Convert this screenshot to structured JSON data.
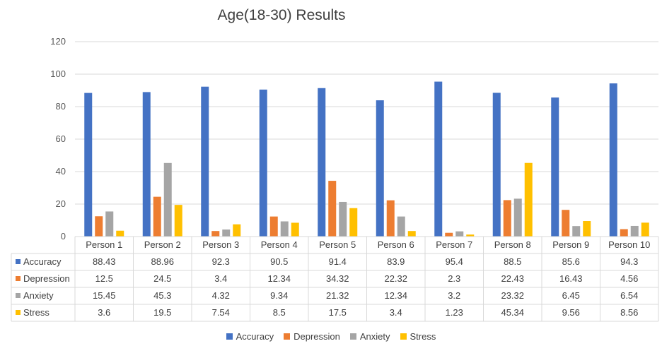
{
  "chart_data": {
    "type": "bar",
    "title": "Age(18-30) Results",
    "categories": [
      "Person 1",
      "Person 2",
      "Person 3",
      "Person 4",
      "Person 5",
      "Person 6",
      "Person 7",
      "Person 8",
      "Person 9",
      "Person 10"
    ],
    "ylim": [
      0,
      120
    ],
    "yticks": [
      0,
      20,
      40,
      60,
      80,
      100,
      120
    ],
    "grid": true,
    "legend_position": "bottom",
    "series": [
      {
        "name": "Accuracy",
        "color": "#4472C4",
        "values": [
          88.43,
          88.96,
          92.3,
          90.5,
          91.4,
          83.9,
          95.4,
          88.5,
          85.6,
          94.3
        ]
      },
      {
        "name": "Depression",
        "color": "#ED7D31",
        "values": [
          12.5,
          24.5,
          3.4,
          12.34,
          34.32,
          22.32,
          2.3,
          22.43,
          16.43,
          4.56
        ]
      },
      {
        "name": "Anxiety",
        "color": "#A5A5A5",
        "values": [
          15.45,
          45.3,
          4.32,
          9.34,
          21.32,
          12.34,
          3.2,
          23.32,
          6.45,
          6.54
        ]
      },
      {
        "name": "Stress",
        "color": "#FFC000",
        "values": [
          3.6,
          19.5,
          7.54,
          8.5,
          17.5,
          3.4,
          1.23,
          45.34,
          9.56,
          8.56
        ]
      }
    ]
  }
}
